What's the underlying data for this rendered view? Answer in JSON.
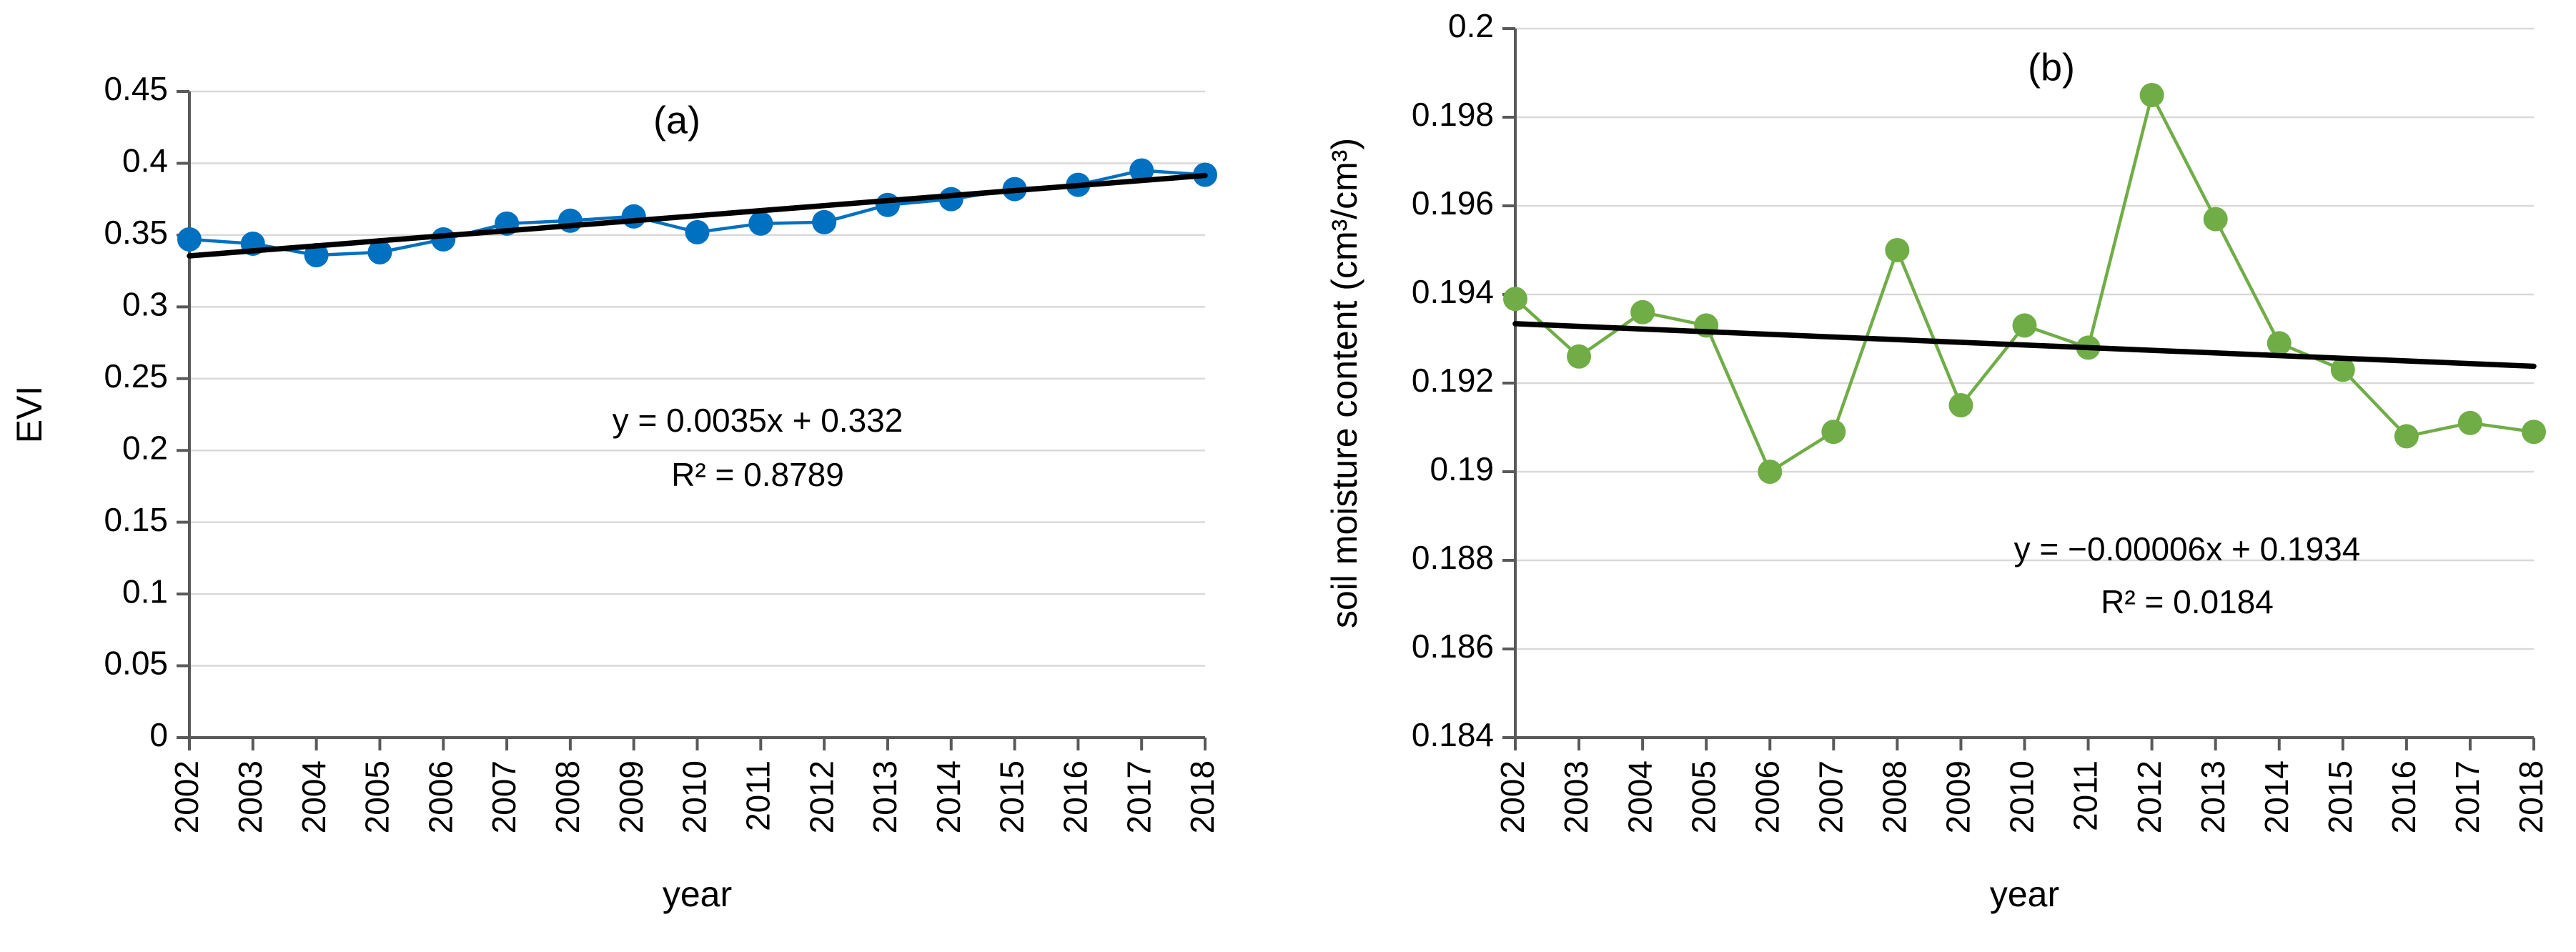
{
  "styles": {
    "background": "#FFFFFF",
    "axis_color": "#595959",
    "grid_color": "#D9D9D9",
    "text_color": "#000000",
    "trend_color": "#000000",
    "series_a_color": "#0070C0",
    "series_b_color": "#70AD47"
  },
  "chart_data": [
    {
      "type": "line",
      "panel_label": "(a)",
      "xlabel": "year",
      "ylabel": "EVI",
      "x": [
        "2002",
        "2003",
        "2004",
        "2005",
        "2006",
        "2007",
        "2008",
        "2009",
        "2010",
        "2011",
        "2012",
        "2013",
        "2014",
        "2015",
        "2016",
        "2017",
        "2018"
      ],
      "series": [
        {
          "name": "EVI",
          "color": "#0070C0",
          "marker": "circle",
          "values": [
            0.347,
            0.344,
            0.336,
            0.338,
            0.347,
            0.358,
            0.36,
            0.363,
            0.352,
            0.358,
            0.359,
            0.371,
            0.375,
            0.382,
            0.385,
            0.395,
            0.392
          ]
        }
      ],
      "trendline": {
        "slope": 0.0035,
        "intercept": 0.332,
        "color": "#000000",
        "equation": "y = 0.0035x + 0.332",
        "r_squared": "R² = 0.8789"
      },
      "ylim": [
        0,
        0.45
      ],
      "ytick_step": 0.05,
      "ytick_labels": [
        "0",
        "0.05",
        "0.1",
        "0.15",
        "0.2",
        "0.25",
        "0.3",
        "0.35",
        "0.4",
        "0.45"
      ],
      "grid": true,
      "legend": "none"
    },
    {
      "type": "line",
      "panel_label": "(b)",
      "xlabel": "year",
      "ylabel": "soil moisture content (cm³/cm³)",
      "x": [
        "2002",
        "2003",
        "2004",
        "2005",
        "2006",
        "2007",
        "2008",
        "2009",
        "2010",
        "2011",
        "2012",
        "2013",
        "2014",
        "2015",
        "2016",
        "2017",
        "2018"
      ],
      "series": [
        {
          "name": "soil moisture content",
          "color": "#70AD47",
          "marker": "circle",
          "values": [
            0.1939,
            0.1926,
            0.1936,
            0.1933,
            0.19,
            0.1909,
            0.195,
            0.1915,
            0.1933,
            0.1928,
            0.1985,
            0.1957,
            0.1929,
            0.1923,
            0.1908,
            0.1911,
            0.1909
          ]
        }
      ],
      "trendline": {
        "slope": -6e-05,
        "intercept": 0.1934,
        "color": "#000000",
        "equation": "y = −0.00006x + 0.1934",
        "r_squared": "R² = 0.0184"
      },
      "ylim": [
        0.184,
        0.2
      ],
      "ytick_step": 0.002,
      "ytick_labels": [
        "0.184",
        "0.186",
        "0.188",
        "0.19",
        "0.192",
        "0.194",
        "0.196",
        "0.198",
        "0.2"
      ],
      "grid": true,
      "legend": "none"
    }
  ]
}
